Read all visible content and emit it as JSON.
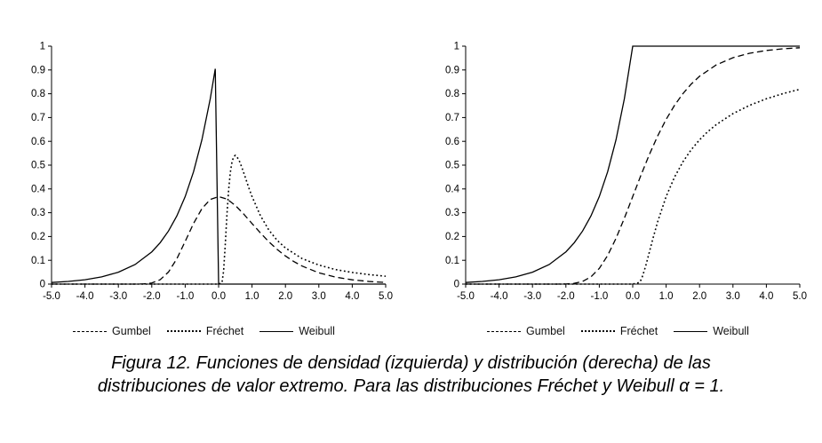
{
  "figure": {
    "caption_line1": "Figura 12. Funciones de densidad (izquierda) y distribución (derecha) de las",
    "caption_line2": "distribuciones de valor extremo. Para las distribuciones Fréchet y Weibull α = 1."
  },
  "chart_data": [
    {
      "id": "density-left",
      "type": "line",
      "title": "",
      "xlabel": "",
      "ylabel": "",
      "xlim": [
        -5,
        5
      ],
      "ylim": [
        0,
        1
      ],
      "grid": false,
      "legend_position": "bottom",
      "x_ticks": [
        -5,
        -4,
        -3,
        -2,
        -1,
        0,
        1,
        2,
        3,
        4,
        5
      ],
      "x_tick_labels": [
        "-5.0",
        "-4.0",
        "-3.0",
        "-2.0",
        "-1.0",
        "0.0",
        "1.0",
        "2.0",
        "3.0",
        "4.0",
        "5.0"
      ],
      "y_ticks": [
        0,
        0.1,
        0.2,
        0.3,
        0.4,
        0.5,
        0.6,
        0.7,
        0.8,
        0.9,
        1
      ],
      "y_tick_labels": [
        "0",
        "0.1",
        "0.2",
        "0.3",
        "0.4",
        "0.5",
        "0.6",
        "0.7",
        "0.8",
        "0.9",
        "1"
      ],
      "series": [
        {
          "name": "Gumbel",
          "style": "dashed",
          "points": [
            [
              -5,
              0
            ],
            [
              -4,
              0
            ],
            [
              -3.5,
              0
            ],
            [
              -3,
              0
            ],
            [
              -2.5,
              0.0001
            ],
            [
              -2.25,
              0.0007
            ],
            [
              -2,
              0.0046
            ],
            [
              -1.75,
              0.0182
            ],
            [
              -1.5,
              0.0507
            ],
            [
              -1.25,
              0.1064
            ],
            [
              -1,
              0.1794
            ],
            [
              -0.75,
              0.2548
            ],
            [
              -0.5,
              0.317
            ],
            [
              -0.25,
              0.3556
            ],
            [
              0,
              0.3679
            ],
            [
              0.25,
              0.3575
            ],
            [
              0.5,
              0.3307
            ],
            [
              0.75,
              0.2945
            ],
            [
              1,
              0.2546
            ],
            [
              1.25,
              0.2152
            ],
            [
              1.5,
              0.1785
            ],
            [
              1.75,
              0.146
            ],
            [
              2,
              0.1182
            ],
            [
              2.25,
              0.0948
            ],
            [
              2.5,
              0.0757
            ],
            [
              3,
              0.0474
            ],
            [
              3.5,
              0.0293
            ],
            [
              4,
              0.018
            ],
            [
              4.5,
              0.011
            ],
            [
              5,
              0.0067
            ]
          ]
        },
        {
          "name": "Fréchet",
          "style": "dotted",
          "points": [
            [
              -5,
              0
            ],
            [
              -1,
              0
            ],
            [
              0,
              0
            ],
            [
              0.1,
              0.005
            ],
            [
              0.15,
              0.056
            ],
            [
              0.2,
              0.168
            ],
            [
              0.25,
              0.293
            ],
            [
              0.3,
              0.396
            ],
            [
              0.35,
              0.469
            ],
            [
              0.4,
              0.513
            ],
            [
              0.45,
              0.535
            ],
            [
              0.5,
              0.541
            ],
            [
              0.6,
              0.525
            ],
            [
              0.7,
              0.489
            ],
            [
              0.8,
              0.448
            ],
            [
              0.9,
              0.406
            ],
            [
              1,
              0.368
            ],
            [
              1.25,
              0.288
            ],
            [
              1.5,
              0.228
            ],
            [
              1.75,
              0.184
            ],
            [
              2,
              0.152
            ],
            [
              2.5,
              0.107
            ],
            [
              3,
              0.08
            ],
            [
              3.5,
              0.061
            ],
            [
              4,
              0.049
            ],
            [
              4.5,
              0.04
            ],
            [
              5,
              0.033
            ]
          ]
        },
        {
          "name": "Weibull",
          "style": "solid",
          "points": [
            [
              -5,
              0.0067
            ],
            [
              -4.5,
              0.0111
            ],
            [
              -4,
              0.0183
            ],
            [
              -3.5,
              0.0302
            ],
            [
              -3,
              0.0498
            ],
            [
              -2.5,
              0.0821
            ],
            [
              -2,
              0.1353
            ],
            [
              -1.75,
              0.1738
            ],
            [
              -1.5,
              0.2231
            ],
            [
              -1.25,
              0.2865
            ],
            [
              -1,
              0.3679
            ],
            [
              -0.75,
              0.4724
            ],
            [
              -0.5,
              0.6065
            ],
            [
              -0.25,
              0.7788
            ],
            [
              -0.1,
              0.9048
            ],
            [
              0,
              0
            ],
            [
              1,
              0
            ],
            [
              2,
              0
            ],
            [
              3,
              0
            ],
            [
              4,
              0
            ],
            [
              5,
              0
            ]
          ]
        }
      ]
    },
    {
      "id": "distribution-right",
      "type": "line",
      "title": "",
      "xlabel": "",
      "ylabel": "",
      "xlim": [
        -5,
        5
      ],
      "ylim": [
        0,
        1
      ],
      "grid": false,
      "legend_position": "bottom",
      "x_ticks": [
        -5,
        -4,
        -3,
        -2,
        -1,
        0,
        1,
        2,
        3,
        4,
        5
      ],
      "x_tick_labels": [
        "-5.0",
        "-4.0",
        "-3.0",
        "-2.0",
        "-1.0",
        "0.0",
        "1.0",
        "2.0",
        "3.0",
        "4.0",
        "5.0"
      ],
      "y_ticks": [
        0,
        0.1,
        0.2,
        0.3,
        0.4,
        0.5,
        0.6,
        0.7,
        0.8,
        0.9,
        1
      ],
      "y_tick_labels": [
        "0",
        "0.1",
        "0.2",
        "0.3",
        "0.4",
        "0.5",
        "0.6",
        "0.7",
        "0.8",
        "0.9",
        "1"
      ],
      "series": [
        {
          "name": "Gumbel",
          "style": "dashed",
          "points": [
            [
              -5,
              0
            ],
            [
              -4,
              0
            ],
            [
              -3,
              0
            ],
            [
              -2.5,
              0
            ],
            [
              -2.25,
              0.0001
            ],
            [
              -2,
              0.0006
            ],
            [
              -1.75,
              0.0032
            ],
            [
              -1.5,
              0.0113
            ],
            [
              -1.25,
              0.0305
            ],
            [
              -1,
              0.066
            ],
            [
              -0.75,
              0.1204
            ],
            [
              -0.5,
              0.1923
            ],
            [
              -0.25,
              0.2769
            ],
            [
              0,
              0.3679
            ],
            [
              0.25,
              0.459
            ],
            [
              0.5,
              0.5452
            ],
            [
              0.75,
              0.6235
            ],
            [
              1,
              0.6922
            ],
            [
              1.25,
              0.7509
            ],
            [
              1.5,
              0.8
            ],
            [
              1.75,
              0.8405
            ],
            [
              2,
              0.8734
            ],
            [
              2.5,
              0.9212
            ],
            [
              3,
              0.9514
            ],
            [
              3.5,
              0.9703
            ],
            [
              4,
              0.9819
            ],
            [
              4.5,
              0.989
            ],
            [
              5,
              0.9933
            ]
          ]
        },
        {
          "name": "Fréchet",
          "style": "dotted",
          "points": [
            [
              -5,
              0
            ],
            [
              -1,
              0
            ],
            [
              0,
              0
            ],
            [
              0.2,
              0.0067
            ],
            [
              0.25,
              0.0183
            ],
            [
              0.3,
              0.0357
            ],
            [
              0.4,
              0.0821
            ],
            [
              0.5,
              0.1353
            ],
            [
              0.6,
              0.1889
            ],
            [
              0.75,
              0.2636
            ],
            [
              1,
              0.3679
            ],
            [
              1.25,
              0.4493
            ],
            [
              1.5,
              0.5134
            ],
            [
              1.75,
              0.5647
            ],
            [
              2,
              0.6065
            ],
            [
              2.25,
              0.6412
            ],
            [
              2.5,
              0.6703
            ],
            [
              3,
              0.7165
            ],
            [
              3.5,
              0.7515
            ],
            [
              4,
              0.7788
            ],
            [
              4.5,
              0.8007
            ],
            [
              5,
              0.8187
            ]
          ]
        },
        {
          "name": "Weibull",
          "style": "solid",
          "points": [
            [
              -5,
              0.0067
            ],
            [
              -4.5,
              0.0111
            ],
            [
              -4,
              0.0183
            ],
            [
              -3.5,
              0.0302
            ],
            [
              -3,
              0.0498
            ],
            [
              -2.5,
              0.0821
            ],
            [
              -2,
              0.1353
            ],
            [
              -1.75,
              0.1738
            ],
            [
              -1.5,
              0.2231
            ],
            [
              -1.25,
              0.2865
            ],
            [
              -1,
              0.3679
            ],
            [
              -0.75,
              0.4724
            ],
            [
              -0.5,
              0.6065
            ],
            [
              -0.25,
              0.7788
            ],
            [
              0,
              1
            ],
            [
              1,
              1
            ],
            [
              2,
              1
            ],
            [
              3,
              1
            ],
            [
              4,
              1
            ],
            [
              5,
              1
            ]
          ]
        }
      ]
    }
  ]
}
